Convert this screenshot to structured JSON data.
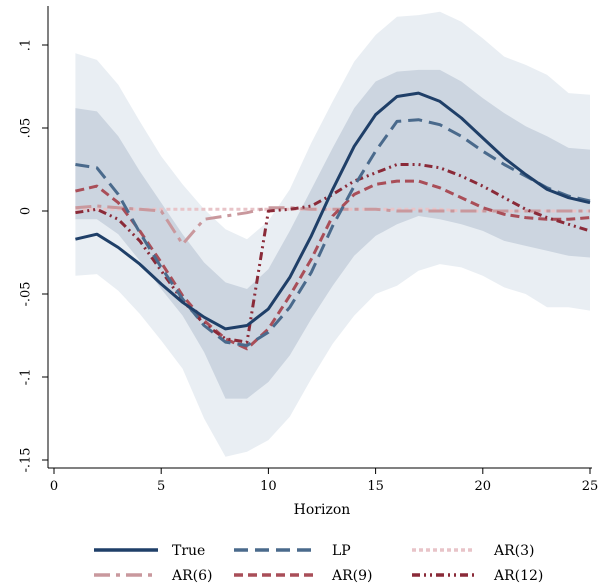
{
  "chart_data": {
    "type": "line",
    "title": "",
    "xlabel": "Horizon",
    "ylabel": "",
    "xlim": [
      0,
      25
    ],
    "ylim": [
      -0.155,
      0.127
    ],
    "x_ticks": [
      0,
      5,
      10,
      15,
      20,
      25
    ],
    "x_tick_labels": [
      "0",
      "5",
      "10",
      "15",
      "20",
      "25"
    ],
    "y_ticks": [
      -0.15,
      -0.1,
      -0.05,
      0,
      0.05,
      0.1
    ],
    "y_tick_labels": [
      "-.15",
      "-.1",
      "-.05",
      "0",
      ".05",
      ".1"
    ],
    "grid": false,
    "legend_position": "bottom",
    "x": [
      1,
      2,
      3,
      4,
      5,
      6,
      7,
      8,
      9,
      10,
      11,
      12,
      13,
      14,
      15,
      16,
      17,
      18,
      19,
      20,
      21,
      22,
      23,
      24,
      25
    ],
    "bands": [
      {
        "name": "outer",
        "color": "#e9eef3",
        "lower": [
          -0.039,
          -0.038,
          -0.048,
          -0.062,
          -0.078,
          -0.095,
          -0.125,
          -0.148,
          -0.145,
          -0.138,
          -0.124,
          -0.101,
          -0.08,
          -0.063,
          -0.05,
          -0.045,
          -0.036,
          -0.032,
          -0.034,
          -0.039,
          -0.046,
          -0.05,
          -0.058,
          -0.058,
          -0.06
        ],
        "upper": [
          0.095,
          0.091,
          0.076,
          0.054,
          0.033,
          0.016,
          0.001,
          -0.011,
          -0.017,
          -0.006,
          0.013,
          0.041,
          0.066,
          0.09,
          0.106,
          0.117,
          0.118,
          0.12,
          0.114,
          0.104,
          0.093,
          0.088,
          0.082,
          0.071,
          0.07
        ]
      },
      {
        "name": "inner",
        "color": "#ccd5e0",
        "lower": [
          -0.005,
          -0.005,
          -0.014,
          -0.03,
          -0.047,
          -0.063,
          -0.085,
          -0.113,
          -0.113,
          -0.103,
          -0.087,
          -0.065,
          -0.045,
          -0.027,
          -0.015,
          -0.008,
          -0.003,
          -0.005,
          -0.008,
          -0.012,
          -0.018,
          -0.021,
          -0.024,
          -0.027,
          -0.028
        ],
        "upper": [
          0.062,
          0.06,
          0.045,
          0.024,
          0.005,
          -0.014,
          -0.031,
          -0.043,
          -0.047,
          -0.035,
          -0.012,
          0.013,
          0.038,
          0.062,
          0.078,
          0.084,
          0.085,
          0.085,
          0.078,
          0.068,
          0.059,
          0.051,
          0.045,
          0.038,
          0.037
        ]
      }
    ],
    "series": [
      {
        "name": "True",
        "color": "#1f3f68",
        "width": 3,
        "dash": "",
        "values": [
          -0.017,
          -0.014,
          -0.022,
          -0.032,
          -0.044,
          -0.055,
          -0.064,
          -0.071,
          -0.069,
          -0.059,
          -0.04,
          -0.015,
          0.013,
          0.039,
          0.058,
          0.069,
          0.071,
          0.066,
          0.056,
          0.044,
          0.032,
          0.022,
          0.013,
          0.008,
          0.005
        ]
      },
      {
        "name": "LP",
        "color": "#4a6a8c",
        "width": 3,
        "dash": "14 7",
        "values": [
          0.028,
          0.026,
          0.01,
          -0.013,
          -0.034,
          -0.053,
          -0.069,
          -0.079,
          -0.081,
          -0.073,
          -0.058,
          -0.037,
          -0.009,
          0.015,
          0.036,
          0.054,
          0.055,
          0.052,
          0.045,
          0.036,
          0.028,
          0.021,
          0.014,
          0.009,
          0.006
        ]
      },
      {
        "name": "AR(3)",
        "color": "#e8c4c8",
        "width": 3,
        "dash": "4 3",
        "values": [
          0.001,
          0.001,
          0.001,
          0.001,
          0.001,
          0.001,
          0.001,
          0.001,
          0.001,
          0.001,
          0.001,
          0.001,
          0.001,
          0.001,
          0.001,
          0.001,
          0.001,
          0.001,
          0.0,
          0.0,
          0.0,
          0.0,
          0.0,
          0.0,
          0.0
        ]
      },
      {
        "name": "AR(6)",
        "color": "#c9989d",
        "width": 3,
        "dash": "16 6 4 6",
        "values": [
          0.002,
          0.003,
          0.002,
          0.001,
          0.0,
          -0.02,
          -0.005,
          -0.003,
          -0.001,
          0.002,
          0.002,
          0.001,
          0.001,
          0.001,
          0.001,
          0.0,
          0.0,
          0.0,
          0.0,
          0.0,
          0.0,
          0.0,
          0.0,
          0.0,
          0.0
        ]
      },
      {
        "name": "AR(9)",
        "color": "#a94e58",
        "width": 3,
        "dash": "9 5",
        "values": [
          0.012,
          0.015,
          0.005,
          -0.012,
          -0.031,
          -0.051,
          -0.066,
          -0.077,
          -0.083,
          -0.071,
          -0.051,
          -0.029,
          -0.003,
          0.01,
          0.016,
          0.018,
          0.018,
          0.014,
          0.008,
          0.002,
          -0.002,
          -0.004,
          -0.005,
          -0.005,
          -0.004
        ]
      },
      {
        "name": "AR(12)",
        "color": "#8a2a38",
        "width": 3,
        "dash": "8 4 2 4 2 4",
        "values": [
          -0.001,
          0.001,
          -0.005,
          -0.018,
          -0.036,
          -0.054,
          -0.068,
          -0.077,
          -0.079,
          0.0,
          0.001,
          0.003,
          0.01,
          0.018,
          0.023,
          0.028,
          0.028,
          0.026,
          0.021,
          0.015,
          0.008,
          0.001,
          -0.004,
          -0.008,
          -0.012
        ]
      }
    ]
  }
}
